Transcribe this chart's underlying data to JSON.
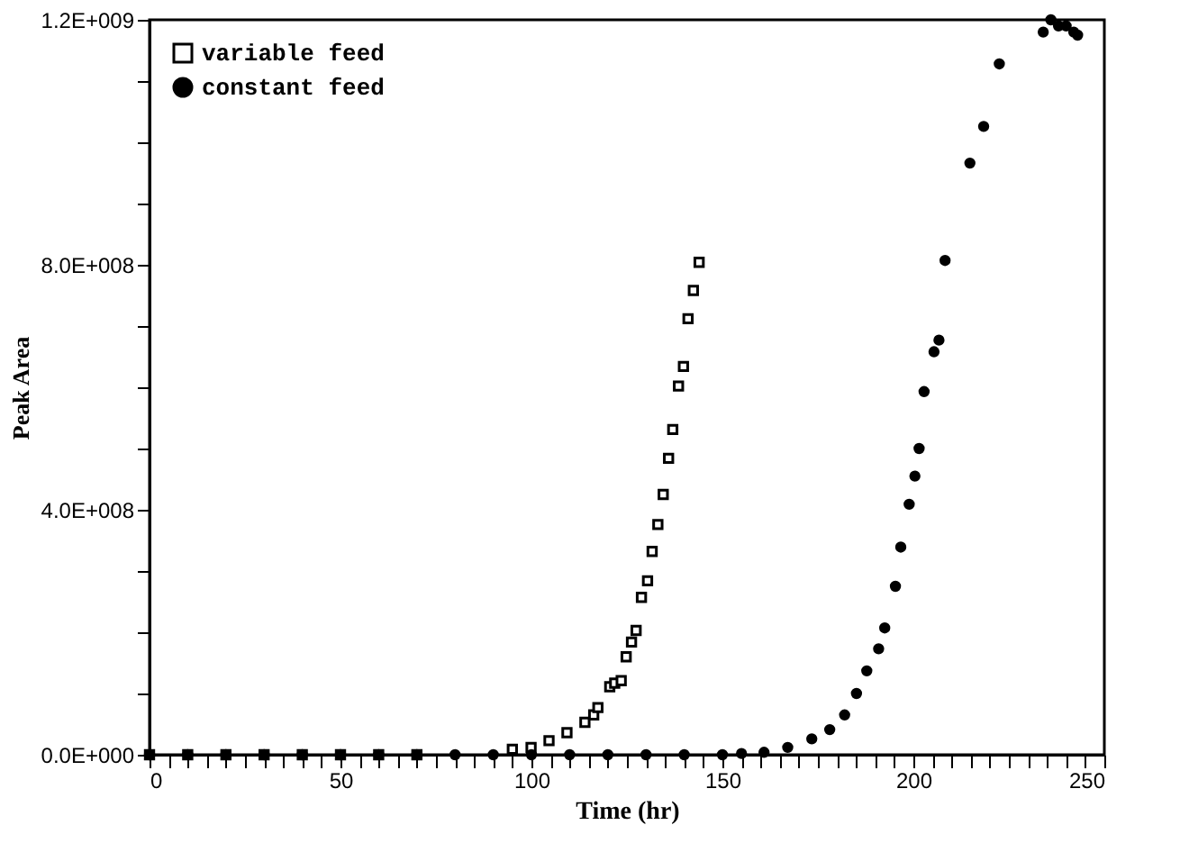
{
  "chart_data": {
    "type": "scatter",
    "xlabel": "Time (hr)",
    "ylabel": "Peak Area",
    "xlim": [
      0,
      250
    ],
    "ylim": [
      0,
      1200000000
    ],
    "xticks": [
      0,
      {
        "value": 5,
        "label": null
      },
      {
        "value": 10,
        "label": null
      },
      {
        "value": 15,
        "label": null
      },
      {
        "value": 20,
        "label": null
      },
      {
        "value": 25,
        "label": null
      },
      {
        "value": 30,
        "label": null
      },
      {
        "value": 35,
        "label": null
      },
      {
        "value": 40,
        "label": null
      },
      {
        "value": 45,
        "label": null
      },
      50,
      {
        "value": 55,
        "label": null
      },
      {
        "value": 60,
        "label": null
      },
      {
        "value": 65,
        "label": null
      },
      {
        "value": 70,
        "label": null
      },
      {
        "value": 75,
        "label": null
      },
      {
        "value": 80,
        "label": null
      },
      {
        "value": 85,
        "label": null
      },
      {
        "value": 90,
        "label": null
      },
      {
        "value": 95,
        "label": null
      },
      100,
      {
        "value": 105,
        "label": null
      },
      {
        "value": 110,
        "label": null
      },
      {
        "value": 115,
        "label": null
      },
      {
        "value": 120,
        "label": null
      },
      {
        "value": 125,
        "label": null
      },
      {
        "value": 130,
        "label": null
      },
      {
        "value": 135,
        "label": null
      },
      {
        "value": 140,
        "label": null
      },
      {
        "value": 145,
        "label": null
      },
      150,
      {
        "value": 155,
        "label": null
      },
      {
        "value": 160,
        "label": null
      },
      {
        "value": 165,
        "label": null
      },
      {
        "value": 170,
        "label": null
      },
      {
        "value": 175,
        "label": null
      },
      {
        "value": 180,
        "label": null
      },
      {
        "value": 185,
        "label": null
      },
      {
        "value": 190,
        "label": null
      },
      {
        "value": 195,
        "label": null
      },
      200,
      {
        "value": 205,
        "label": null
      },
      {
        "value": 210,
        "label": null
      },
      {
        "value": 215,
        "label": null
      },
      {
        "value": 220,
        "label": null
      },
      {
        "value": 225,
        "label": null
      },
      {
        "value": 230,
        "label": null
      },
      {
        "value": 235,
        "label": null
      },
      {
        "value": 240,
        "label": null
      },
      {
        "value": 245,
        "label": null
      },
      250
    ],
    "yticks": [
      {
        "value": 0,
        "label": "0.0E+000"
      },
      {
        "value": 100000000,
        "label": null
      },
      {
        "value": 200000000,
        "label": null
      },
      {
        "value": 300000000,
        "label": null
      },
      {
        "value": 400000000,
        "label": "4.0E+008"
      },
      {
        "value": 500000000,
        "label": null
      },
      {
        "value": 600000000,
        "label": null
      },
      {
        "value": 700000000,
        "label": null
      },
      {
        "value": 800000000,
        "label": "8.0E+008"
      },
      {
        "value": 900000000,
        "label": null
      },
      {
        "value": 1000000000,
        "label": null
      },
      {
        "value": 1100000000,
        "label": null
      },
      {
        "value": 1200000000,
        "label": "1.2E+009"
      }
    ],
    "grid": false,
    "legend": "top left",
    "series": [
      {
        "name": "variable feed",
        "color": "#000000",
        "marker": "square",
        "x": [
          0,
          10,
          20,
          30,
          40,
          50,
          60,
          70,
          80,
          90,
          95,
          99.9,
          104.6,
          109.3,
          114.0,
          116.3,
          117.4,
          120.5,
          121.8,
          123.5,
          124.8,
          126.2,
          127.4,
          128.8,
          130.4,
          131.6,
          133.1,
          134.5,
          135.9,
          137.0,
          138.5,
          139.8,
          141.0,
          142.4,
          143.9
        ],
        "values": [
          0,
          0,
          0,
          0,
          0,
          0,
          0,
          0,
          null,
          null,
          9000000,
          12000000,
          23000000,
          36000000,
          53000000,
          65000000,
          77000000,
          111000000,
          117000000,
          121000000,
          160000000,
          184000000,
          203000000,
          257000000,
          284000000,
          332000000,
          376000000,
          425000000,
          484000000,
          531000000,
          602000000,
          634000000,
          712000000,
          758000000,
          804000000
        ]
      },
      {
        "name": "constant feed",
        "color": "#000000",
        "marker": "circle",
        "x": [
          0,
          10,
          20,
          30,
          40,
          50,
          60,
          70,
          80,
          90,
          100,
          110,
          120,
          130,
          140,
          150,
          155,
          160.9,
          167.1,
          173.4,
          178.1,
          182.0,
          185.1,
          187.8,
          190.9,
          192.5,
          195.3,
          196.7,
          198.9,
          200.4,
          201.5,
          202.8,
          205.4,
          206.7,
          208.3,
          214.8,
          218.4,
          222.5,
          234,
          236,
          238,
          240,
          242,
          243
        ],
        "values": [
          0,
          0,
          0,
          0,
          0,
          0,
          0,
          0,
          0,
          0,
          0,
          0,
          0,
          0,
          0,
          0,
          2000000,
          4000000,
          12000000,
          26000000,
          41000000,
          65000000,
          100000000,
          137000000,
          173000000,
          207000000,
          275000000,
          339000000,
          409000000,
          455000000,
          500000000,
          593000000,
          658000000,
          677000000,
          807000000,
          966000000,
          1026000000,
          1128000000,
          1180000000,
          1200000000,
          1190000000,
          1190000000,
          1180000000,
          1175000000
        ]
      }
    ]
  }
}
